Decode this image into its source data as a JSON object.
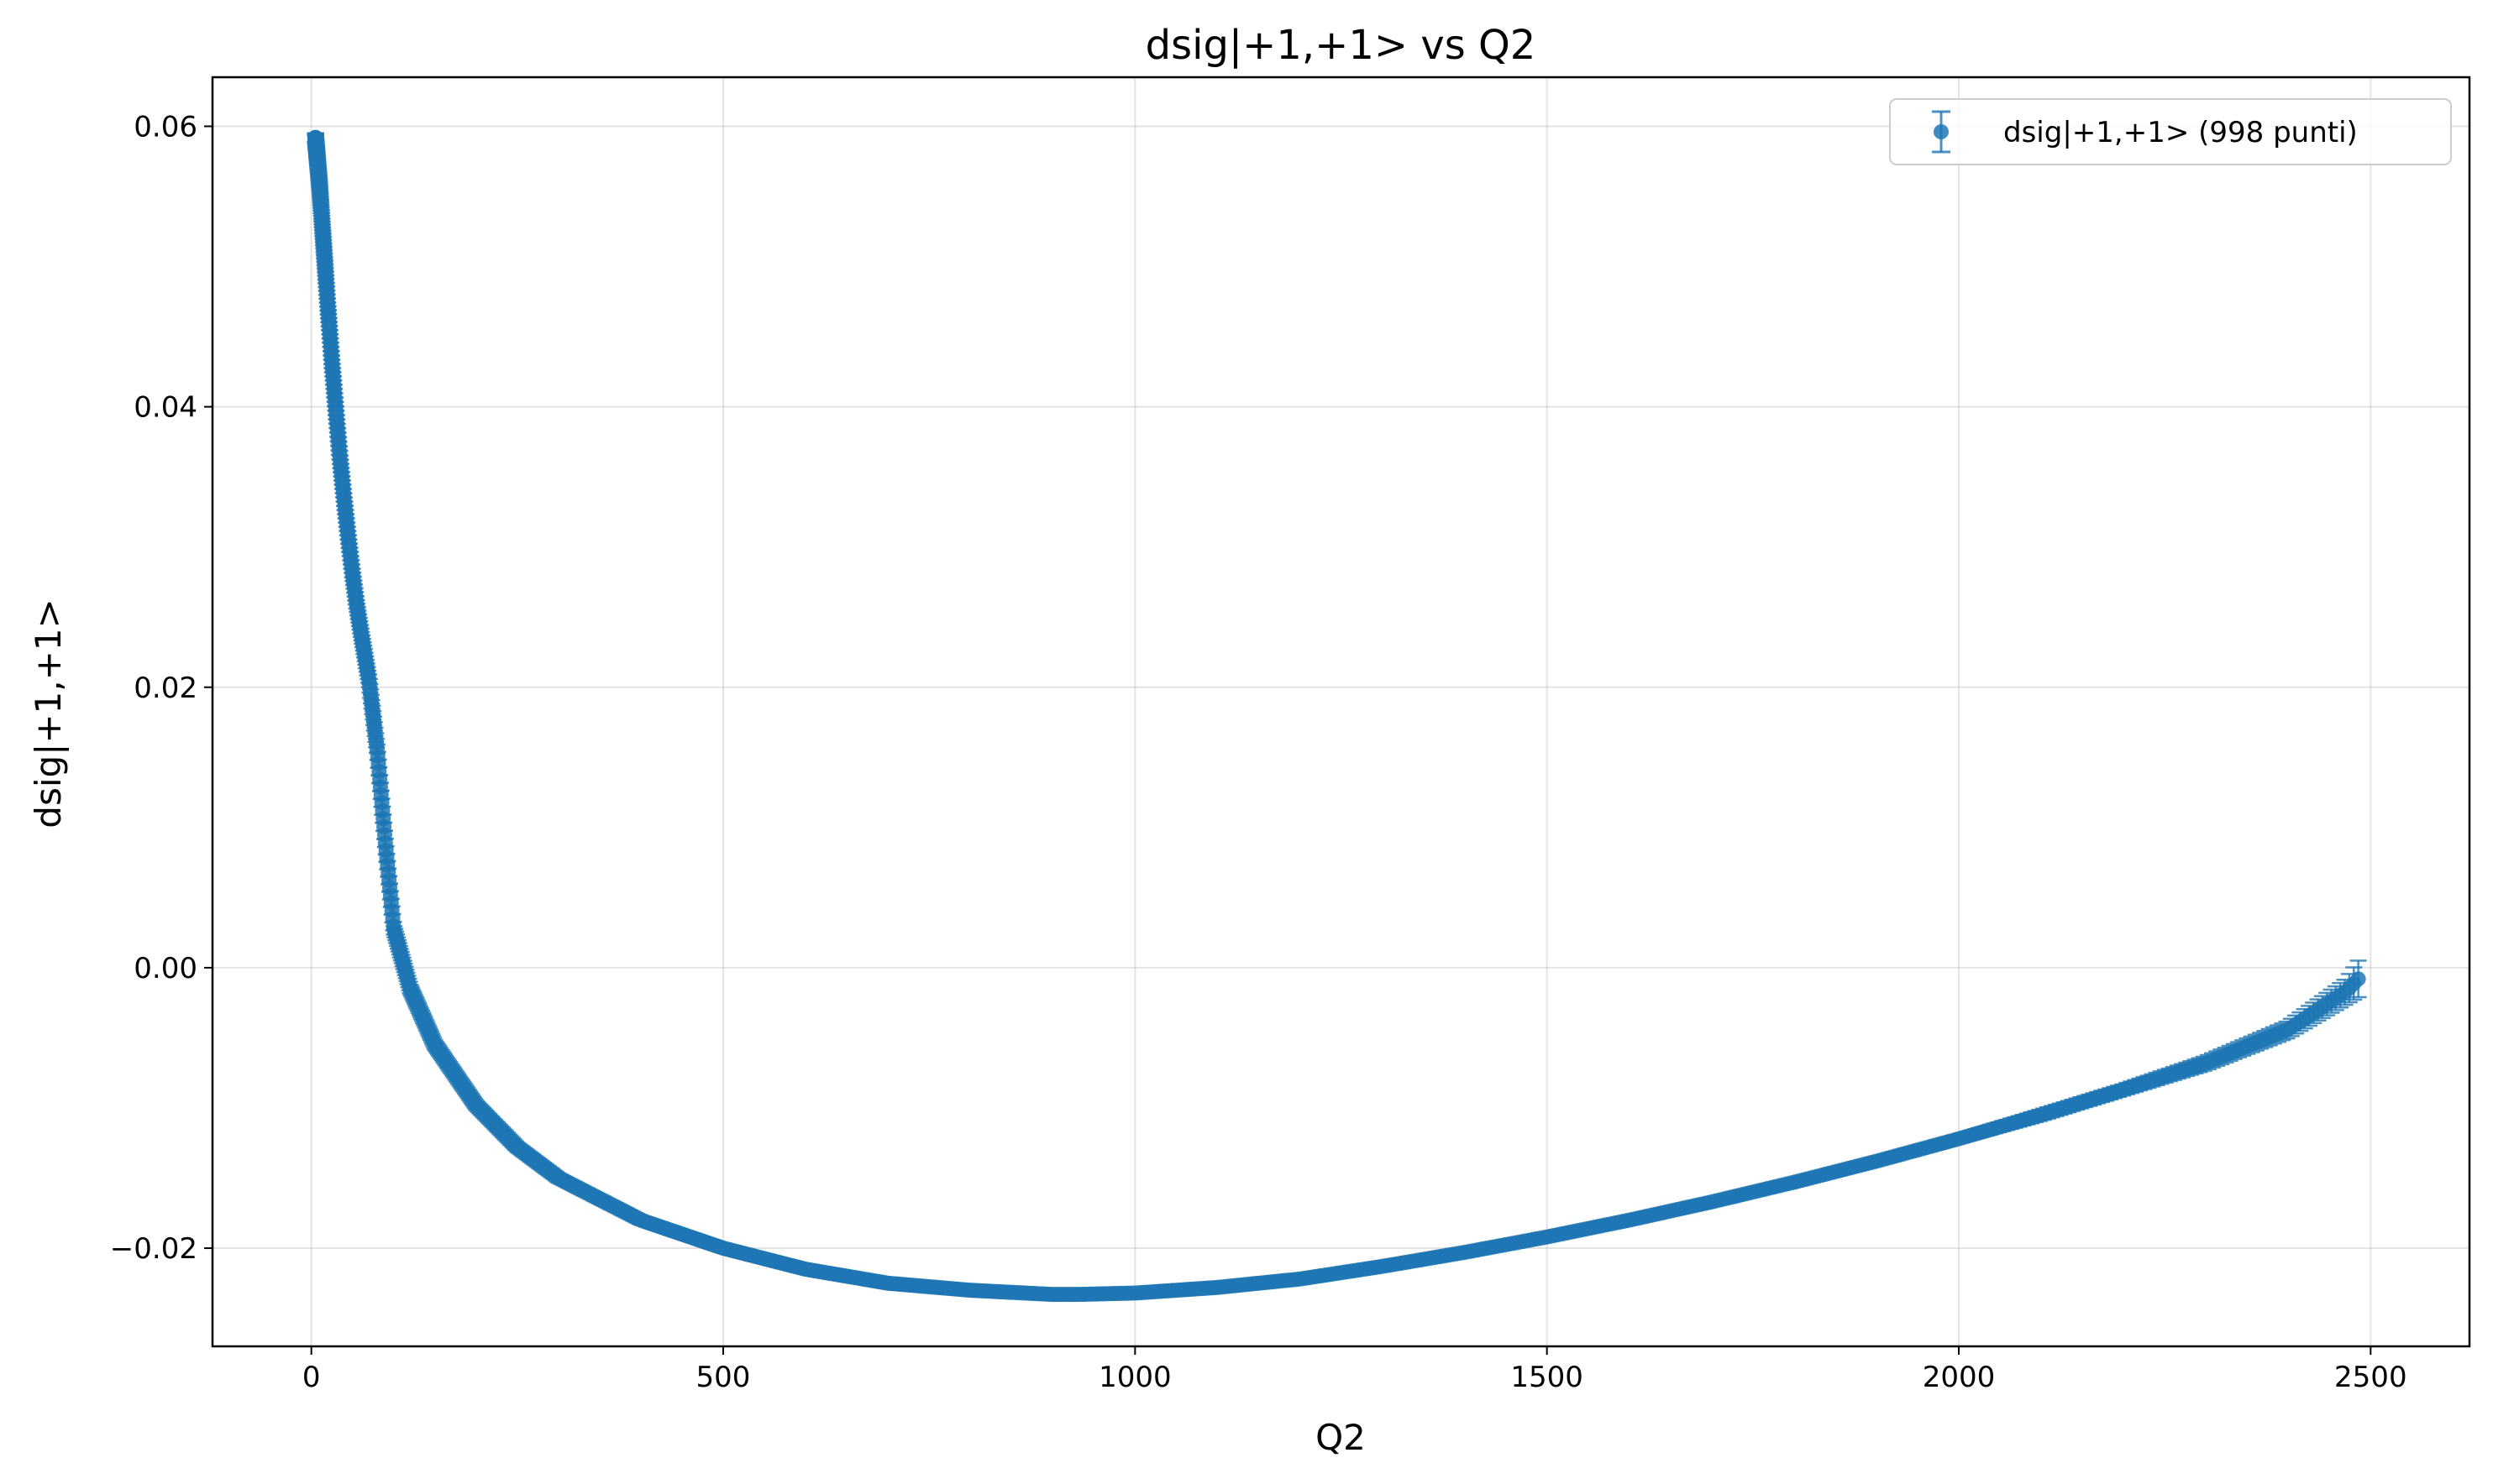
{
  "chart_data": {
    "type": "scatter",
    "title": "dsig|+1,+1> vs Q2",
    "xlabel": "Q2",
    "ylabel": "dsig|+1,+1>",
    "xlim": [
      -120,
      2620
    ],
    "ylim": [
      -0.027,
      0.0635
    ],
    "xticks": [
      0,
      500,
      1000,
      1500,
      2000,
      2500
    ],
    "xtick_labels": [
      "0",
      "500",
      "1000",
      "1500",
      "2000",
      "2500"
    ],
    "yticks": [
      -0.02,
      0.0,
      0.02,
      0.04,
      0.06
    ],
    "ytick_labels": [
      "−0.02",
      "0.00",
      "0.02",
      "0.04",
      "0.06"
    ],
    "grid": true,
    "legend": "top-right",
    "color": "#1f77b4",
    "series": [
      {
        "name": "dsig|+1,+1> (998 punti)",
        "n_points": 998,
        "x_range": [
          5,
          2485
        ],
        "errorbars": true,
        "x": [
          5,
          10,
          15,
          20,
          25,
          30,
          35,
          40,
          45,
          50,
          55,
          60,
          70,
          80,
          90,
          100,
          120,
          150,
          200,
          250,
          300,
          400,
          500,
          600,
          700,
          800,
          900,
          930,
          1000,
          1100,
          1200,
          1300,
          1400,
          1500,
          1600,
          1700,
          1800,
          1900,
          2000,
          2100,
          2200,
          2300,
          2400,
          2470,
          2485
        ],
        "y": [
          0.0592,
          0.0558,
          0.0515,
          0.0472,
          0.0432,
          0.0396,
          0.0362,
          0.0333,
          0.0306,
          0.0281,
          0.0259,
          0.024,
          0.0205,
          0.0155,
          0.0088,
          0.0028,
          -0.0015,
          -0.0055,
          -0.0098,
          -0.0128,
          -0.015,
          -0.018,
          -0.02,
          -0.0215,
          -0.0225,
          -0.023,
          -0.0233,
          -0.0233,
          -0.0232,
          -0.0228,
          -0.0222,
          -0.0213,
          -0.0203,
          -0.0192,
          -0.018,
          -0.0167,
          -0.0153,
          -0.0138,
          -0.0122,
          -0.0105,
          -0.0087,
          -0.0068,
          -0.0044,
          -0.0017,
          -0.0008
        ],
        "yerr": [
          0.0003,
          0.0003,
          0.0003,
          0.0003,
          0.0003,
          0.0003,
          0.0003,
          0.0003,
          0.0003,
          0.0003,
          0.0003,
          0.0003,
          0.0003,
          0.0003,
          0.0003,
          0.0003,
          0.0003,
          0.0003,
          0.0003,
          0.0003,
          0.0003,
          0.0003,
          0.0003,
          0.0003,
          0.0003,
          0.0003,
          0.0003,
          0.0003,
          0.0003,
          0.0003,
          0.0003,
          0.0003,
          0.0003,
          0.0003,
          0.0003,
          0.0003,
          0.0003,
          0.0003,
          0.0003,
          0.0004,
          0.0004,
          0.0005,
          0.0006,
          0.0009,
          0.0013
        ]
      }
    ]
  }
}
